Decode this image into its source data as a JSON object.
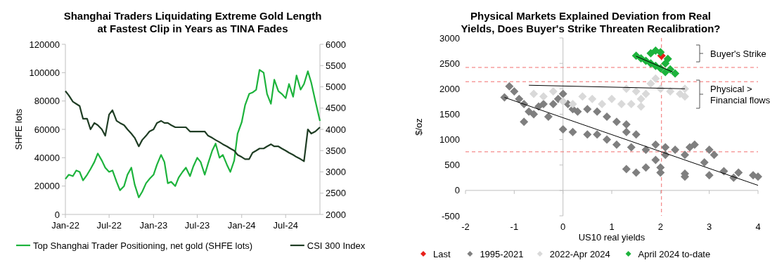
{
  "chart_data": [
    {
      "type": "line",
      "title": "Shanghai Traders Liquidating Extreme Gold Length\nat Fastest Clip in Years as TINA Fades",
      "ylabel": "SHFE lots",
      "legend": "bottom",
      "grid": false,
      "xlim": [
        "2022-01-01",
        "2024-11-20"
      ],
      "xticks": [
        {
          "value": "2022-01-01",
          "label": "Jan-22"
        },
        {
          "value": "2022-07-01",
          "label": "Jul-22"
        },
        {
          "value": "2023-01-01",
          "label": "Jan-23"
        },
        {
          "value": "2023-07-01",
          "label": "Jul-23"
        },
        {
          "value": "2024-01-01",
          "label": "Jan-24"
        },
        {
          "value": "2024-07-01",
          "label": "Jul-24"
        }
      ],
      "ylim": [
        0,
        120000
      ],
      "yticks": [
        0,
        20000,
        40000,
        60000,
        80000,
        100000,
        120000
      ],
      "y2lim": [
        2000,
        6000
      ],
      "y2ticks": [
        2000,
        2500,
        3000,
        3500,
        4000,
        4500,
        5000,
        5500,
        6000
      ],
      "series": [
        {
          "name": "Top Shanghai Trader Positioning, net gold (SHFE lots)",
          "color": "#1db33c",
          "x": [
            "2022-01-01",
            "2022-01-15",
            "2022-02-01",
            "2022-02-15",
            "2022-03-01",
            "2022-03-15",
            "2022-04-01",
            "2022-04-15",
            "2022-05-01",
            "2022-05-15",
            "2022-06-01",
            "2022-06-15",
            "2022-07-01",
            "2022-07-15",
            "2022-08-01",
            "2022-08-15",
            "2022-09-01",
            "2022-09-15",
            "2022-10-01",
            "2022-10-15",
            "2022-11-01",
            "2022-11-15",
            "2022-12-01",
            "2022-12-15",
            "2023-01-01",
            "2023-01-15",
            "2023-02-01",
            "2023-02-15",
            "2023-03-01",
            "2023-03-15",
            "2023-04-01",
            "2023-04-15",
            "2023-05-01",
            "2023-05-15",
            "2023-06-01",
            "2023-06-15",
            "2023-07-01",
            "2023-07-15",
            "2023-08-01",
            "2023-08-15",
            "2023-09-01",
            "2023-09-15",
            "2023-10-01",
            "2023-10-15",
            "2023-11-01",
            "2023-11-15",
            "2023-12-01",
            "2023-12-15",
            "2024-01-01",
            "2024-01-15",
            "2024-02-01",
            "2024-02-15",
            "2024-03-01",
            "2024-03-15",
            "2024-04-01",
            "2024-04-15",
            "2024-05-01",
            "2024-05-15",
            "2024-06-01",
            "2024-06-15",
            "2024-07-01",
            "2024-07-15",
            "2024-08-01",
            "2024-08-15",
            "2024-09-01",
            "2024-09-15",
            "2024-10-01",
            "2024-10-15",
            "2024-11-01",
            "2024-11-20"
          ],
          "values": [
            25000,
            28000,
            27000,
            31000,
            30000,
            24000,
            28000,
            32000,
            37000,
            43000,
            38000,
            33000,
            30000,
            31000,
            23000,
            17000,
            20000,
            28000,
            33000,
            21000,
            12000,
            16000,
            22000,
            25000,
            28000,
            35000,
            42000,
            37000,
            22000,
            23000,
            20000,
            26000,
            30000,
            33000,
            27000,
            34000,
            40000,
            37000,
            28000,
            36000,
            45000,
            50000,
            40000,
            42000,
            35000,
            30000,
            38000,
            57000,
            65000,
            77000,
            85000,
            86000,
            88000,
            102000,
            100000,
            85000,
            78000,
            95000,
            87000,
            85000,
            82000,
            92000,
            83000,
            98000,
            88000,
            92000,
            101000,
            93000,
            80000,
            66000
          ]
        },
        {
          "name": "CSI 300 Index",
          "color": "#1f3d24",
          "axis": "y2",
          "x": [
            "2022-01-01",
            "2022-01-15",
            "2022-02-01",
            "2022-02-15",
            "2022-03-01",
            "2022-03-15",
            "2022-04-01",
            "2022-04-15",
            "2022-05-01",
            "2022-05-15",
            "2022-06-01",
            "2022-06-15",
            "2022-07-01",
            "2022-07-15",
            "2022-08-01",
            "2022-08-15",
            "2022-09-01",
            "2022-09-15",
            "2022-10-01",
            "2022-10-15",
            "2022-11-01",
            "2022-11-15",
            "2022-12-01",
            "2022-12-15",
            "2023-01-01",
            "2023-01-15",
            "2023-02-01",
            "2023-02-15",
            "2023-03-01",
            "2023-03-15",
            "2023-04-01",
            "2023-04-15",
            "2023-05-01",
            "2023-05-15",
            "2023-06-01",
            "2023-06-15",
            "2023-07-01",
            "2023-07-15",
            "2023-08-01",
            "2023-08-15",
            "2023-09-01",
            "2023-09-15",
            "2023-10-01",
            "2023-10-15",
            "2023-11-01",
            "2023-11-15",
            "2023-12-01",
            "2023-12-15",
            "2024-01-01",
            "2024-01-15",
            "2024-02-01",
            "2024-02-15",
            "2024-03-01",
            "2024-03-15",
            "2024-04-01",
            "2024-04-15",
            "2024-05-01",
            "2024-05-15",
            "2024-06-01",
            "2024-06-15",
            "2024-07-01",
            "2024-07-15",
            "2024-08-01",
            "2024-08-15",
            "2024-09-01",
            "2024-09-15",
            "2024-10-01",
            "2024-10-15",
            "2024-11-01",
            "2024-11-20"
          ],
          "values": [
            4900,
            4800,
            4650,
            4600,
            4550,
            4250,
            4250,
            4000,
            4150,
            4100,
            4000,
            3850,
            4350,
            4450,
            4200,
            4150,
            4100,
            4000,
            3900,
            3800,
            3600,
            3750,
            3850,
            3950,
            4000,
            4150,
            4200,
            4150,
            4150,
            4100,
            4050,
            4050,
            4050,
            4050,
            3950,
            3950,
            3950,
            3950,
            3950,
            3850,
            3800,
            3750,
            3700,
            3650,
            3600,
            3550,
            3500,
            3400,
            3350,
            3300,
            3300,
            3450,
            3500,
            3550,
            3550,
            3600,
            3650,
            3600,
            3600,
            3550,
            3500,
            3450,
            3400,
            3350,
            3300,
            3250,
            4000,
            3900,
            3950,
            4050
          ]
        }
      ]
    },
    {
      "type": "scatter",
      "title": "Physical Markets Explained Deviation from Real\nYields, Does Buyer's Strike Threaten Recalibration?",
      "xlabel": "US10 real yields",
      "ylabel": "$/oz",
      "legend": "bottom",
      "marker": "diamond",
      "xlim": [
        -2,
        4
      ],
      "xticks": [
        -2,
        -1,
        0,
        1,
        2,
        3,
        4
      ],
      "ylim": [
        -500,
        3000
      ],
      "yticks": [
        -500,
        0,
        500,
        1000,
        1500,
        2000,
        2500,
        3000
      ],
      "ref_lines": [
        {
          "axis": "y",
          "value": 2420,
          "color": "#f26d6d",
          "line_style": "dashed"
        },
        {
          "axis": "y",
          "value": 2140,
          "color": "#f26d6d",
          "line_style": "dashed"
        },
        {
          "axis": "y",
          "value": 760,
          "color": "#f26d6d",
          "line_style": "dashed"
        },
        {
          "axis": "x",
          "value": 2.02,
          "color": "#f26d6d",
          "line_style": "dashed"
        }
      ],
      "annotations": [
        "Buyer's Strike",
        "Physical > Financial flows"
      ],
      "series": [
        {
          "name": "Last",
          "color": "#e8201a",
          "x": [
            2.02
          ],
          "values": [
            2650
          ]
        },
        {
          "name": "1995-2021",
          "color": "#7f7f7f",
          "x": [
            -1.2,
            -1.1,
            -1.0,
            -0.9,
            -0.8,
            -0.7,
            -0.6,
            -0.8,
            -0.5,
            -0.4,
            -0.3,
            -0.2,
            -0.1,
            0,
            0.1,
            0.2,
            0.3,
            0,
            0.2,
            0.5,
            0.7,
            0.5,
            0.7,
            0.9,
            1.1,
            1.3,
            0.9,
            1.1,
            1.3,
            1.5,
            1.4,
            1.7,
            1.9,
            2.1,
            2.3,
            2.6,
            2.7,
            3.0,
            3.1,
            2.9,
            2.5,
            2.1,
            1.9,
            2.0,
            1.7,
            1.3,
            1.5,
            2.0,
            2.5,
            3.0,
            3.3,
            3.6,
            3.9,
            4.0,
            3.5,
            2.5
          ],
          "values": [
            1830,
            2050,
            1950,
            1800,
            1700,
            1550,
            1500,
            1350,
            1650,
            1700,
            1450,
            1700,
            1800,
            1900,
            1700,
            1600,
            1550,
            1200,
            1150,
            1100,
            1100,
            1600,
            1550,
            1450,
            1350,
            1300,
            1000,
            900,
            1150,
            1100,
            850,
            800,
            900,
            850,
            800,
            850,
            900,
            800,
            700,
            550,
            700,
            700,
            600,
            450,
            450,
            420,
            350,
            350,
            330,
            300,
            380,
            350,
            300,
            270,
            250,
            270
          ]
        },
        {
          "name": "2022-Apr 2024",
          "color": "#d9d9d9",
          "x": [
            -0.6,
            -0.4,
            -0.2,
            0,
            0.2,
            0.4,
            0.6,
            0.8,
            1.0,
            1.2,
            1.4,
            1.6,
            1.3,
            1.5,
            1.7,
            1.8,
            1.9,
            2.0,
            2.2,
            2.4,
            2.5,
            2.5,
            1.6
          ],
          "values": [
            1900,
            1850,
            1950,
            1750,
            1700,
            1850,
            1800,
            1700,
            1800,
            1700,
            1700,
            1650,
            2000,
            1950,
            1900,
            2100,
            2200,
            2000,
            1950,
            1900,
            1850,
            2000,
            1800
          ]
        },
        {
          "name": "April 2024 to-date",
          "color": "#1db33c",
          "x": [
            1.5,
            1.6,
            1.7,
            1.8,
            1.9,
            2.0,
            1.8,
            1.9,
            2.0,
            2.1,
            2.2,
            2.3,
            2.15,
            2.1
          ],
          "values": [
            2650,
            2600,
            2550,
            2700,
            2750,
            2720,
            2500,
            2450,
            2400,
            2500,
            2380,
            2300,
            2590,
            2330
          ]
        },
        {
          "type": "line",
          "color": "#000000",
          "marker": "none",
          "x": [
            -1.2,
            4
          ],
          "values": [
            1830,
            100
          ]
        },
        {
          "type": "line",
          "color": "#000000",
          "marker": "none",
          "x": [
            -0.7,
            2.5
          ],
          "values": [
            2070,
            2000
          ]
        },
        {
          "type": "line",
          "color": "#000000",
          "marker": "none",
          "x": [
            1.5,
            2.25
          ],
          "values": [
            2640,
            2330
          ]
        }
      ]
    }
  ]
}
